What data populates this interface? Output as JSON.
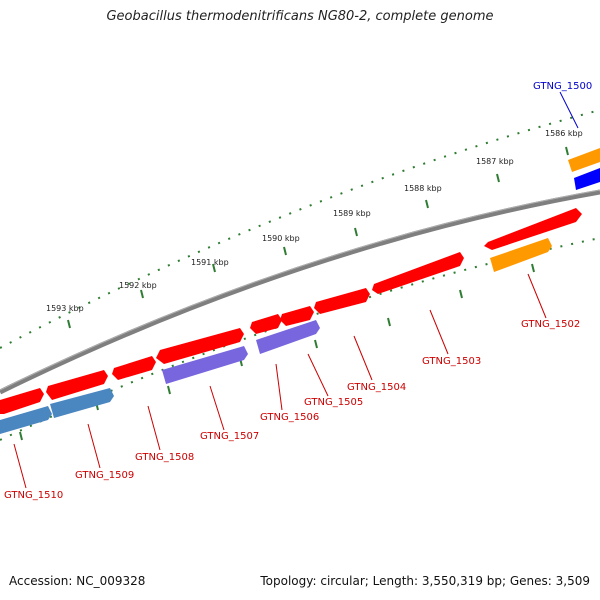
{
  "title": "Geobacillus thermodenitrificans NG80-2, complete genome",
  "footer": {
    "accession": "Accession: NC_009328",
    "summary": "Topology: circular; Length: 3,550,319 bp; Genes: 3,509"
  },
  "scale_labels": [
    "1593 kbp",
    "1592 kbp",
    "1591 kbp",
    "1590 kbp",
    "1589 kbp",
    "1588 kbp",
    "1587 kbp",
    "1586 kbp"
  ],
  "genes": [
    {
      "name": "GTNG_1500",
      "color": "#0000cc"
    },
    {
      "name": "GTNG_1502",
      "color": "#cc0000"
    },
    {
      "name": "GTNG_1503",
      "color": "#cc0000"
    },
    {
      "name": "GTNG_1504",
      "color": "#cc0000"
    },
    {
      "name": "GTNG_1505",
      "color": "#cc0000"
    },
    {
      "name": "GTNG_1506",
      "color": "#cc0000"
    },
    {
      "name": "GTNG_1507",
      "color": "#cc0000"
    },
    {
      "name": "GTNG_1508",
      "color": "#cc0000"
    },
    {
      "name": "GTNG_1509",
      "color": "#cc0000"
    },
    {
      "name": "GTNG_1510",
      "color": "#cc0000"
    }
  ],
  "colors": {
    "backbone": "#7f7f7f",
    "ticks": "#2e7d32",
    "gene_red": "#ff0000",
    "gene_blue": "#0000ff",
    "gene_orange": "#ff9900",
    "gene_purple": "#7766dd",
    "gene_steel": "#4a86c0"
  }
}
